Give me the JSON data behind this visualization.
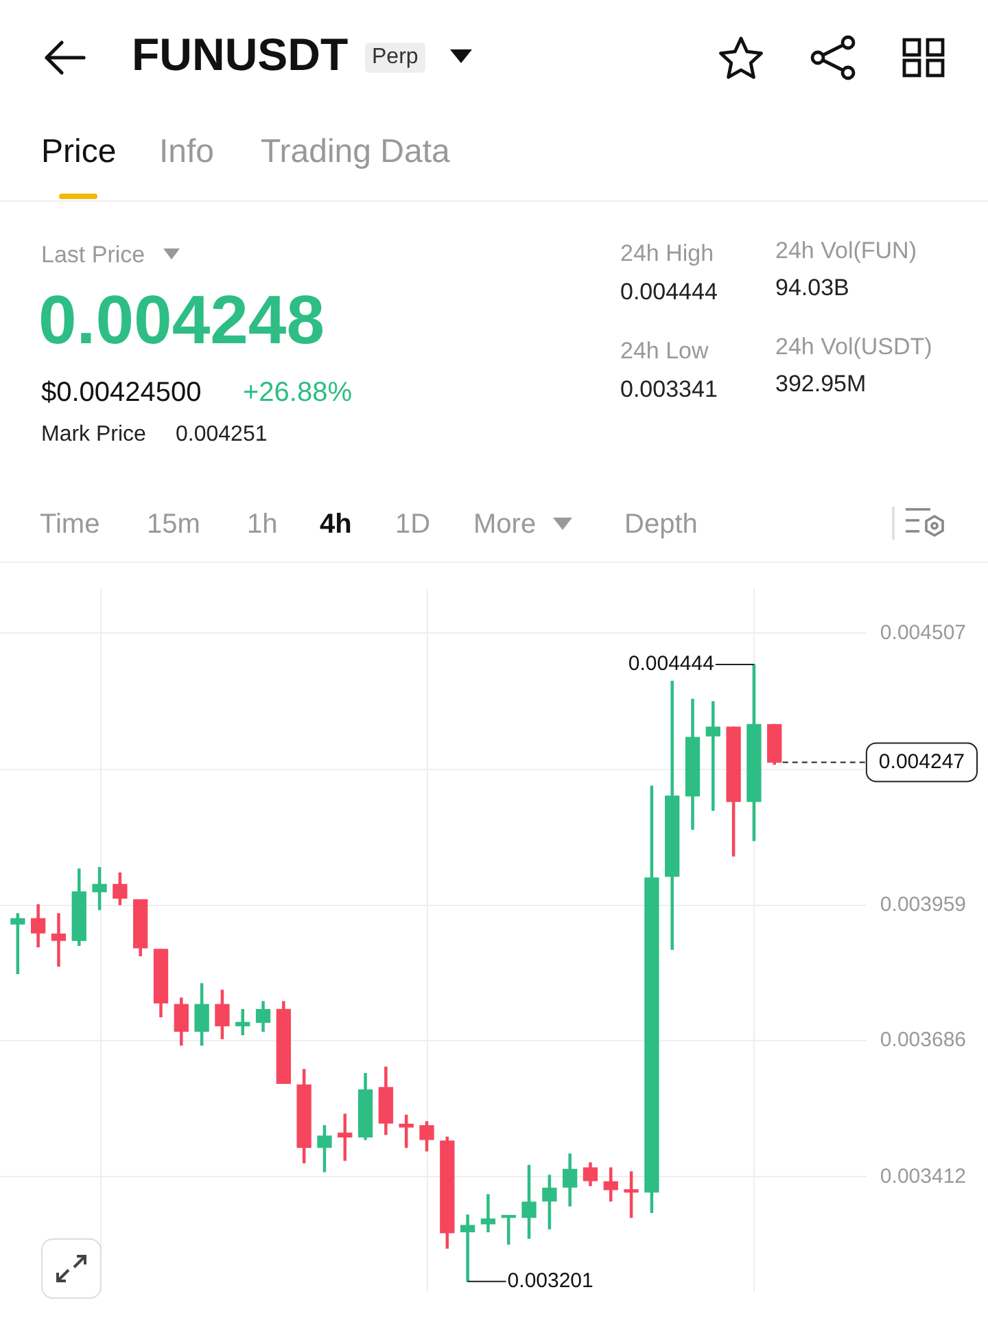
{
  "chart_data": {
    "type": "candlestick",
    "title": "FUNUSDT",
    "categories": [
      null,
      null,
      null,
      null,
      null,
      null,
      null,
      null,
      null,
      null,
      null,
      null,
      null,
      null,
      null,
      null,
      null,
      null,
      null,
      null,
      null,
      null,
      null,
      null,
      null,
      null,
      null,
      null,
      null,
      null,
      null,
      null,
      null,
      null,
      null,
      null,
      null,
      null
    ],
    "ohlc": [
      [
        0.003921,
        0.003942,
        0.003821,
        0.003932
      ],
      [
        0.003932,
        0.00396,
        0.003875,
        0.003903
      ],
      [
        0.003901,
        0.003942,
        0.003836,
        0.003888
      ],
      [
        0.003888,
        0.004032,
        0.003878,
        0.003986
      ],
      [
        0.003986,
        0.004035,
        0.00395,
        0.004001
      ],
      [
        0.004001,
        0.004024,
        0.00396,
        0.003973
      ],
      [
        0.00397,
        0.00397,
        0.003857,
        0.003873
      ],
      [
        0.00387,
        0.00387,
        0.003734,
        0.003762
      ],
      [
        0.003759,
        0.003772,
        0.003677,
        0.003705
      ],
      [
        0.003705,
        0.003801,
        0.003677,
        0.003759
      ],
      [
        0.003759,
        0.003788,
        0.00369,
        0.003716
      ],
      [
        0.003716,
        0.003749,
        0.003698,
        0.003723
      ],
      [
        0.003723,
        0.003765,
        0.003705,
        0.003749
      ],
      [
        0.003749,
        0.003765,
        0.0036,
        0.0036
      ],
      [
        0.003597,
        0.003628,
        0.00344,
        0.003471
      ],
      [
        0.003471,
        0.003515,
        0.003422,
        0.003494
      ],
      [
        0.0035,
        0.003538,
        0.003445,
        0.003492
      ],
      [
        0.003492,
        0.00362,
        0.003487,
        0.003587
      ],
      [
        0.003592,
        0.003633,
        0.003497,
        0.00352
      ],
      [
        0.003518,
        0.003536,
        0.003471,
        0.003512
      ],
      [
        0.003515,
        0.003523,
        0.003464,
        0.003487
      ],
      [
        0.003484,
        0.003492,
        0.003268,
        0.003299
      ],
      [
        0.003301,
        0.003335,
        0.003201,
        0.003314
      ],
      [
        0.003317,
        0.003376,
        0.003301,
        0.003327
      ],
      [
        0.00333,
        0.003332,
        0.003276,
        0.003332
      ],
      [
        0.00333,
        0.003435,
        0.003288,
        0.003361
      ],
      [
        0.003363,
        0.003415,
        0.003307,
        0.003389
      ],
      [
        0.003391,
        0.003458,
        0.003353,
        0.003427
      ],
      [
        0.00343,
        0.00344,
        0.003394,
        0.003404
      ],
      [
        0.003402,
        0.00343,
        0.003363,
        0.003386
      ],
      [
        0.003386,
        0.003422,
        0.00333,
        0.003381
      ],
      [
        0.003381,
        0.004199,
        0.00334,
        0.004014
      ],
      [
        0.004017,
        0.00441,
        0.00387,
        0.004179
      ],
      [
        0.004179,
        0.004374,
        0.004112,
        0.004297
      ],
      [
        0.0043,
        0.004369,
        0.00415,
        0.004318
      ],
      [
        0.004318,
        0.004318,
        0.004058,
        0.004168
      ],
      [
        0.004168,
        0.004444,
        0.004089,
        0.004323
      ],
      [
        0.004323,
        0.004323,
        0.004243,
        0.004247
      ]
    ],
    "colors": [
      "#2ebd85",
      "#f6465d",
      "#f6465d",
      "#2ebd85",
      "#2ebd85",
      "#f6465d",
      "#f6465d",
      "#f6465d",
      "#f6465d",
      "#2ebd85",
      "#f6465d",
      "#2ebd85",
      "#2ebd85",
      "#f6465d",
      "#f6465d",
      "#2ebd85",
      "#f6465d",
      "#2ebd85",
      "#f6465d",
      "#f6465d",
      "#f6465d",
      "#f6465d",
      "#2ebd85",
      "#2ebd85",
      "#2ebd85",
      "#2ebd85",
      "#2ebd85",
      "#2ebd85",
      "#f6465d",
      "#f6465d",
      "#f6465d",
      "#2ebd85",
      "#2ebd85",
      "#2ebd85",
      "#2ebd85",
      "#f6465d",
      "#2ebd85",
      "#f6465d"
    ],
    "ylim": [
      0.00318,
      0.004596
    ],
    "yticks": [
      0.003412,
      0.003686,
      0.003959,
      {
        "value": 0.004233,
        "label": null
      },
      0.004507
    ],
    "tick_labels": "y",
    "grid": true,
    "ref_lines": [
      {
        "axis": "y",
        "value": 0.004247,
        "label": "0.004247",
        "line_style": "dashed"
      }
    ],
    "annotations": [
      "Perp",
      "Price",
      "Info",
      "Trading Data",
      "Last Price",
      "0.004248",
      "$0.00424500",
      "+26.88%",
      "Mark Price",
      "0.004251",
      "24h High",
      "0.004444",
      "24h Low",
      "0.003341",
      "24h Vol(FUN)",
      "94.03B",
      "24h Vol(USDT)",
      "392.95M",
      "Time",
      "15m",
      "1h",
      "4h",
      "1D",
      "More",
      "Depth",
      "0.004444",
      "0.003201"
    ]
  }
}
